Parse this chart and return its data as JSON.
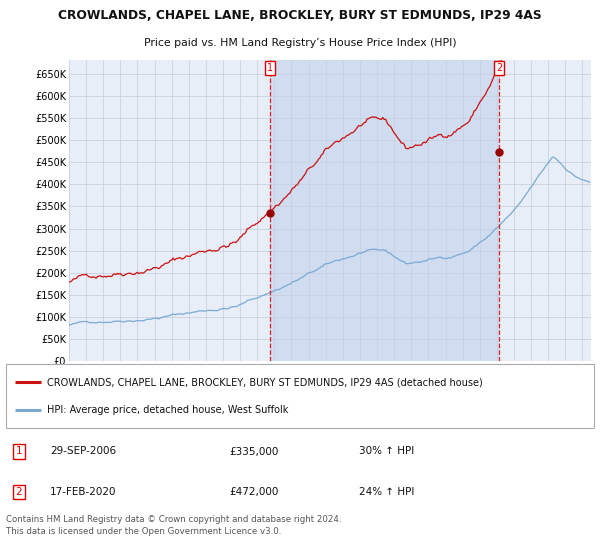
{
  "title": "CROWLANDS, CHAPEL LANE, BROCKLEY, BURY ST EDMUNDS, IP29 4AS",
  "subtitle": "Price paid vs. HM Land Registry’s House Price Index (HPI)",
  "background_color": "#ffffff",
  "grid_color": "#c8d0e0",
  "plot_bg_color": "#e8eef8",
  "shaded_bg_color": "#d0dcf0",
  "ylim": [
    0,
    680000
  ],
  "yticks": [
    0,
    50000,
    100000,
    150000,
    200000,
    250000,
    300000,
    350000,
    400000,
    450000,
    500000,
    550000,
    600000,
    650000
  ],
  "ytick_labels": [
    "£0",
    "£50K",
    "£100K",
    "£150K",
    "£200K",
    "£250K",
    "£300K",
    "£350K",
    "£400K",
    "£450K",
    "£500K",
    "£550K",
    "£600K",
    "£650K"
  ],
  "xmin": 1995.0,
  "xmax": 2025.5,
  "purchase_date_1": 2006.75,
  "purchase_date_2": 2020.12,
  "purchase_price_1": 335000,
  "purchase_price_2": 472000,
  "vline_color": "#dd0000",
  "marker_color": "#990000",
  "red_line_color": "#cc1111",
  "blue_line_color": "#7aaad4",
  "legend_red_label": "CROWLANDS, CHAPEL LANE, BROCKLEY, BURY ST EDMUNDS, IP29 4AS (detached house)",
  "legend_blue_label": "HPI: Average price, detached house, West Suffolk",
  "annotation_1_date": "29-SEP-2006",
  "annotation_1_price": "£335,000",
  "annotation_1_hpi": "30% ↑ HPI",
  "annotation_2_date": "17-FEB-2020",
  "annotation_2_price": "£472,000",
  "annotation_2_hpi": "24% ↑ HPI",
  "footer": "Contains HM Land Registry data © Crown copyright and database right 2024.\nThis data is licensed under the Open Government Licence v3.0."
}
